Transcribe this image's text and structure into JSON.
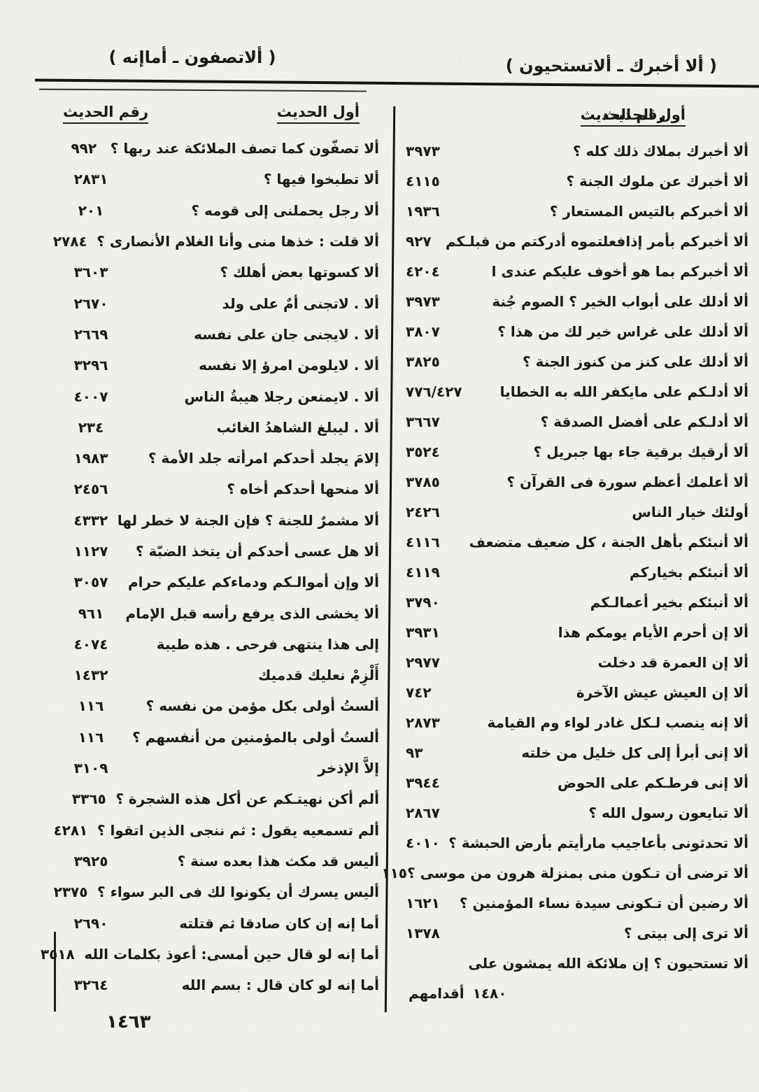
{
  "page": {
    "running_head_left": "( ألاتصفون ـ أماإنه )",
    "running_head_right": "( ألا أخبرك ـ ألاتستحيون )",
    "page_number": "١٤٦٣",
    "labels": {
      "first_of_hadith": "أول الحديث",
      "hadith_number": "رقم الحديث"
    }
  },
  "right_column_rows": [
    {
      "text": "ألا أخبرك بملاك ذلك كله ؟",
      "num": "٣٩٧٣"
    },
    {
      "text": "ألا أخبرك عن ملوك الجنة ؟",
      "num": "٤١١٥"
    },
    {
      "text": "ألا أخبركم بالتيس المستعار ؟",
      "num": "١٩٣٦"
    },
    {
      "text": "ألا أخبركم بأمر إذافعلتموه أدركتم من قبلـكم",
      "num": "٩٢٧"
    },
    {
      "text": "ألا أخبركم بما هو أخوف عليكم عندى ا",
      "num": "٤٢٠٤"
    },
    {
      "text": "ألا أدلك على أبواب الخير ؟ الصوم جُنة",
      "num": "٣٩٧٣"
    },
    {
      "text": "ألا أدلك على غراس خير لك من هذا ؟",
      "num": "٣٨٠٧"
    },
    {
      "text": "ألا أدلك على كنز من كنوز الجنة ؟",
      "num": "٣٨٢٥"
    },
    {
      "text": "ألا أدلـكم على مايكفر الله به الخطايا",
      "num": "٧٧٦/٤٢٧"
    },
    {
      "text": "ألا أدلـكم على أفضل الصدقة ؟",
      "num": "٣٦٦٧"
    },
    {
      "text": "ألا أرقيك برقية جاء بها جبريل ؟",
      "num": "٣٥٢٤"
    },
    {
      "text": "ألا أعلمك أعظم سورة فى القرآن ؟",
      "num": "٣٧٨٥"
    },
    {
      "text": "أولئك خيار الناس",
      "num": "٢٤٢٦"
    },
    {
      "text": "ألا أنبئكم بأهل الجنة ، كل ضعيف متضعف",
      "num": "٤١١٦"
    },
    {
      "text": "ألا أنبئكم بخياركم",
      "num": "٤١١٩"
    },
    {
      "text": "ألا أنبئكم بخير أعمالـكم",
      "num": "٣٧٩٠"
    },
    {
      "text": "ألا إن أحرم الأيام يومكم هذا",
      "num": "٣٩٣١"
    },
    {
      "text": "ألا إن العمرة قد دخلت",
      "num": "٢٩٧٧"
    },
    {
      "text": "ألا إن العيش عيش الآخرة",
      "num": "٧٤٢"
    },
    {
      "text": "ألا إنه ينصب لـكل غادر لواء وم القيامة",
      "num": "٢٨٧٣"
    },
    {
      "text": "ألا إنى أبرأ إلى كل خليل من خلته",
      "num": "٩٣"
    },
    {
      "text": "ألا إنى فرطـكم على الحوض",
      "num": "٣٩٤٤"
    },
    {
      "text": "ألا تبايعون رسول الله ؟",
      "num": "٢٨٦٧"
    },
    {
      "text": "ألا تحدثونى بأعاجيب مارأيتم بأرض الحبشة ؟",
      "num": "٤٠١٠"
    },
    {
      "text": "ألا ترضى أن تـكون منى بمنزلة هرون من موسى ؟",
      "num": "١١٥"
    },
    {
      "text": "ألا رضين أن تـكونى سيدة نساء المؤمنين ؟",
      "num": "١٦٢١"
    },
    {
      "text": "ألا ترى إلى بيتى ؟",
      "num": "١٣٧٨"
    },
    {
      "text": "ألا تستحيون ؟ إن ملائكة الله يمشون على",
      "num": ""
    },
    {
      "text": "أقدامهم",
      "num": "١٤٨٠",
      "cont": true
    }
  ],
  "left_column_rows": [
    {
      "text": "ألا تصفّون كما تصف الملائكة عند ربها ؟",
      "num": "٩٩٢"
    },
    {
      "text": "ألا تطبخوا فيها ؟",
      "num": "٢٨٣١"
    },
    {
      "text": "ألا رجل يحملنى إلى قومه ؟",
      "num": "٢٠١"
    },
    {
      "text": "ألا قلت : خذها منى وأنا الغلام الأنصارى ؟",
      "num": "٢٧٨٤"
    },
    {
      "text": "ألا كسوتها بعض أهلك ؟",
      "num": "٣٦٠٣"
    },
    {
      "text": "ألا . لاتجنى أمٌ على ولد",
      "num": "٢٦٧٠"
    },
    {
      "text": "ألا . لايجنى جان على نفسه",
      "num": "٢٦٦٩"
    },
    {
      "text": "ألا . لايلومن امرؤ إلا نفسه",
      "num": "٣٢٩٦"
    },
    {
      "text": "ألا . لايمنعن رجلا هيبةُ الناس",
      "num": "٤٠٠٧"
    },
    {
      "text": "ألا . ليبلغ الشاهدُ الغائب",
      "num": "٢٣٤"
    },
    {
      "text": "إلامَ يجلد أحدكم امرأته جلد الأمة ؟",
      "num": "١٩٨٣"
    },
    {
      "text": "ألا منحها أحدكم أخاه ؟",
      "num": "٢٤٥٦"
    },
    {
      "text": "ألا مشمرٌ للجنة ؟ فإن الجنة لا خطر لها",
      "num": "٤٣٣٢"
    },
    {
      "text": "ألا هل عسى أحدكم أن يتخذ الضبّة ؟",
      "num": "١١٢٧"
    },
    {
      "text": "ألا وإن أموالـكم ودماءكم عليكم حرام",
      "num": "٣٠٥٧"
    },
    {
      "text": "ألا يخشى الذى يرفع رأسه قبل الإمام",
      "num": "٩٦١"
    },
    {
      "text": "إلى هذا ينتهى فرحى . هذه طيبة",
      "num": "٤٠٧٤"
    },
    {
      "text": "أَلْزِمْ نعليك قدميك",
      "num": "١٤٣٢"
    },
    {
      "text": "ألستُ أولى بكل مؤمن من نفسه ؟",
      "num": "١١٦"
    },
    {
      "text": "ألستُ أولى بالمؤمنين من أنفسهم ؟",
      "num": "١١٦"
    },
    {
      "text": "إلاَّ الإذخر",
      "num": "٣١٠٩"
    },
    {
      "text": "ألم أكن نهيتـكم عن أكل هذه الشجرة ؟",
      "num": "٣٣٦٥"
    },
    {
      "text": "ألم تسمعيه يقول : ثم ننجى الذين اتقوا ؟",
      "num": "٤٢٨١"
    },
    {
      "text": "أليس قد مكث هذا بعده سنة ؟",
      "num": "٣٩٢٥"
    },
    {
      "text": "أليس يسرك أن يكونوا لك فى البر سواء ؟",
      "num": "٢٣٧٥"
    },
    {
      "text": "أما إنه إن كان صادقا ثم قتلته",
      "num": "٢٦٩٠"
    },
    {
      "text": "أما إنه لو قال حين أمسى: أعوذ بكلمات الله",
      "num": "٣٥١٨"
    },
    {
      "text": "أما إنه لو كان قال : بسم الله",
      "num": "٣٢٦٤"
    }
  ]
}
